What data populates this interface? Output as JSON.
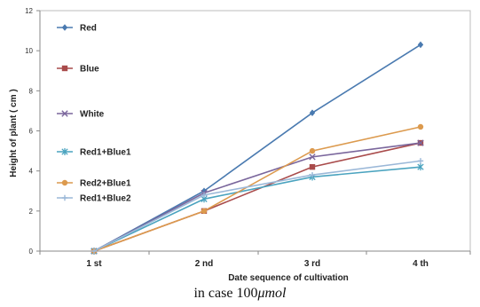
{
  "chart_data": {
    "type": "line",
    "title": "",
    "xlabel": "Date sequence of cultivation",
    "ylabel": "Height of plant ( cm )",
    "categories": [
      "1 st",
      "2 nd",
      "3 rd",
      "4 th"
    ],
    "ylim": [
      0,
      12
    ],
    "yticks": [
      0,
      2,
      4,
      6,
      8,
      10,
      12
    ],
    "grid": false,
    "legend_position": "left",
    "series": [
      {
        "name": "Red",
        "color": "#4a7ab0",
        "marker": "diamond",
        "values": [
          0,
          3.0,
          6.9,
          10.3
        ]
      },
      {
        "name": "Blue",
        "color": "#a94b4b",
        "marker": "square",
        "values": [
          0,
          2.0,
          4.2,
          5.4
        ]
      },
      {
        "name": "White",
        "color": "#7a669c",
        "marker": "x",
        "values": [
          0,
          2.9,
          4.7,
          5.4
        ]
      },
      {
        "name": "Red1+Blue1",
        "color": "#4aa3bf",
        "marker": "star",
        "values": [
          0,
          2.6,
          3.7,
          4.2
        ]
      },
      {
        "name": "Red2+Blue1",
        "color": "#dc9a4e",
        "marker": "circle",
        "values": [
          0,
          2.0,
          5.0,
          6.2
        ]
      },
      {
        "name": "Red1+Blue2",
        "color": "#9bb8d8",
        "marker": "plus",
        "values": [
          0,
          2.8,
          3.8,
          4.5
        ]
      }
    ]
  },
  "caption": {
    "prefix": "in case 100",
    "unit": "μmol"
  }
}
